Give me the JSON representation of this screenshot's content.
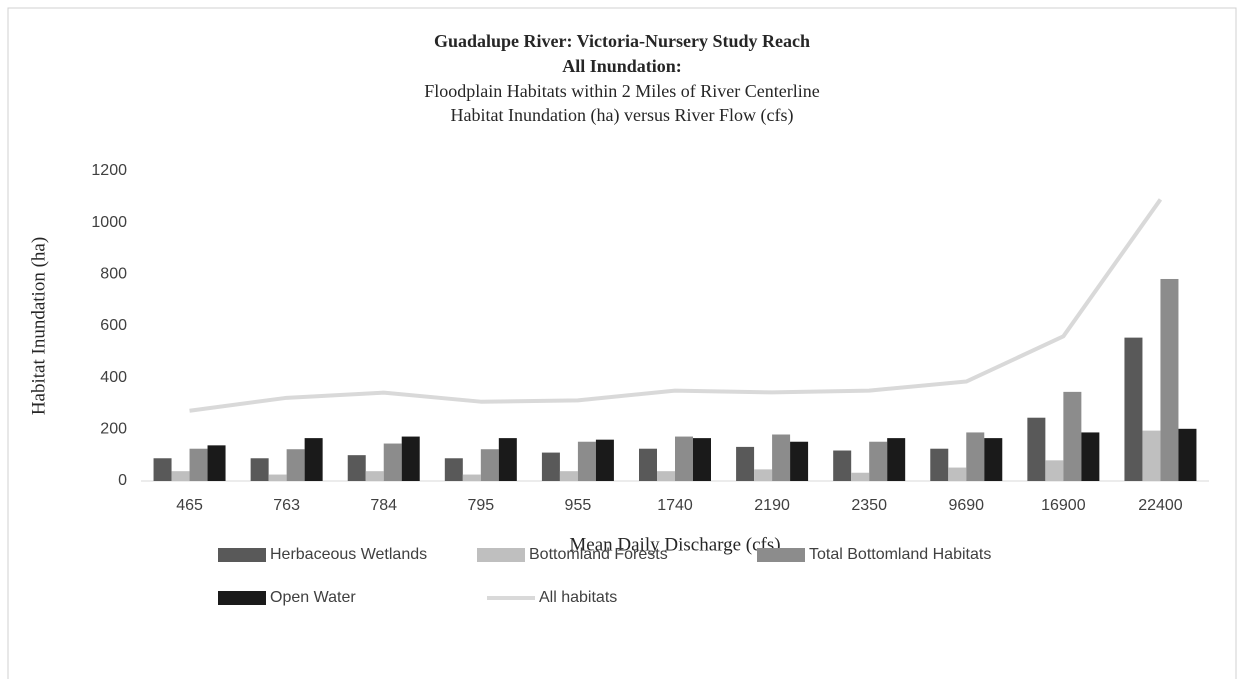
{
  "chart_data": {
    "type": "bar",
    "title": [
      "Guadalupe River: Victoria-Nursery Study Reach",
      "All Inundation:"
    ],
    "subtitle": [
      "Floodplain Habitats within 2 Miles of River Centerline",
      "Habitat Inundation (ha) versus River Flow (cfs)"
    ],
    "x_label": "Mean Daily Discharge (cfs)",
    "y_label": "Habitat Inundation (ha)",
    "categories": [
      "465",
      "763",
      "784",
      "795",
      "955",
      "1740",
      "2190",
      "2350",
      "9690",
      "16900",
      "22400"
    ],
    "series": [
      {
        "name": "Herbaceous Wetlands",
        "color": "#595959",
        "values": [
          88,
          88,
          100,
          88,
          110,
          125,
          132,
          118,
          125,
          245,
          555
        ]
      },
      {
        "name": "Bottomland Forests",
        "color": "#bfbfbf",
        "values": [
          38,
          25,
          38,
          25,
          38,
          38,
          45,
          32,
          52,
          80,
          195
        ]
      },
      {
        "name": "Total Bottomland Habitats",
        "color": "#8c8c8c",
        "values": [
          125,
          123,
          145,
          123,
          152,
          172,
          180,
          152,
          188,
          345,
          782
        ]
      },
      {
        "name": "Open Water",
        "color": "#1a1a1a",
        "values": [
          138,
          166,
          172,
          166,
          160,
          166,
          152,
          166,
          166,
          188,
          202
        ]
      },
      {
        "name": "All habitats",
        "color": "#d9d9d9",
        "type": "line",
        "values": [
          272,
          322,
          342,
          307,
          312,
          350,
          343,
          350,
          385,
          560,
          1090
        ]
      }
    ],
    "ylim": [
      0,
      1200
    ],
    "yticks": [
      0,
      200,
      400,
      600,
      800,
      1000,
      1200
    ],
    "grid": false,
    "legend": "bottom"
  }
}
